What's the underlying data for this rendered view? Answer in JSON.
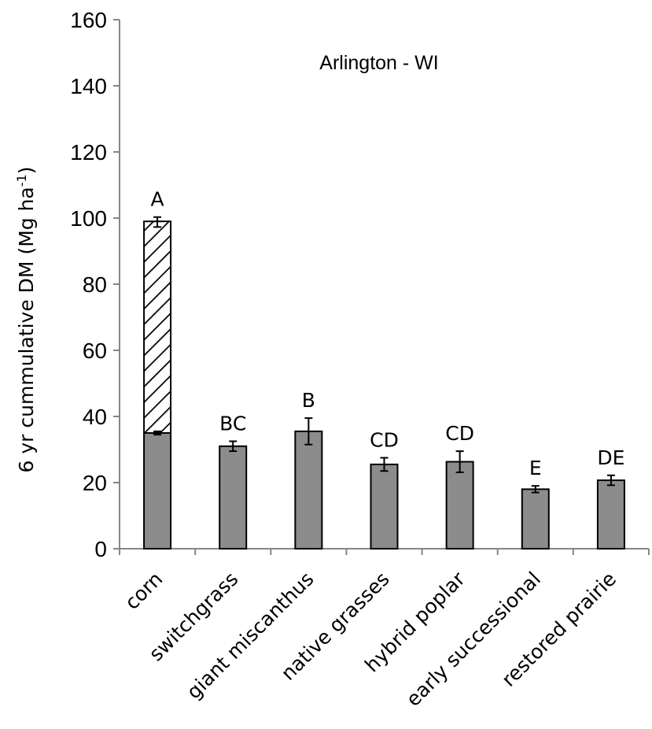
{
  "chart_data": {
    "type": "bar",
    "title": "Arlington - WI",
    "ylabel": "6 yr cummulative DM (Mg ha",
    "ylabel_sup": "-1",
    "ylabel_close": ")",
    "ylim": [
      0,
      160
    ],
    "yticks": [
      "0",
      "20",
      "40",
      "60",
      "80",
      "100",
      "120",
      "140",
      "160"
    ],
    "grid": false,
    "categories": [
      "corn",
      "switchgrass",
      "giant miscanthus",
      "native grasses",
      "hybrid poplar",
      "early successional",
      "restored prairie"
    ],
    "series": [
      {
        "values": [
          35,
          31,
          35.5,
          25.5,
          26.3,
          18,
          20.7
        ],
        "color": "#8c8c8c"
      },
      {
        "values": [
          64,
          0,
          0,
          0,
          0,
          0,
          0
        ],
        "color": "#ffffff",
        "pattern": "diagonal-hatch"
      }
    ],
    "error_bars": [
      {
        "total": 98.8,
        "err": 1.5
      },
      {
        "total": 31,
        "err": 1.5
      },
      {
        "total": 35.5,
        "err": 4
      },
      {
        "total": 25.5,
        "err": 2
      },
      {
        "total": 26.3,
        "err": 3.2
      },
      {
        "total": 18,
        "err": 1
      },
      {
        "total": 20.7,
        "err": 1.5
      }
    ],
    "base_error_bar": {
      "index": 0,
      "value": 35,
      "err": 0.5
    },
    "significance_labels": [
      "A",
      "BC",
      "B",
      "CD",
      "CD",
      "E",
      "DE"
    ]
  }
}
